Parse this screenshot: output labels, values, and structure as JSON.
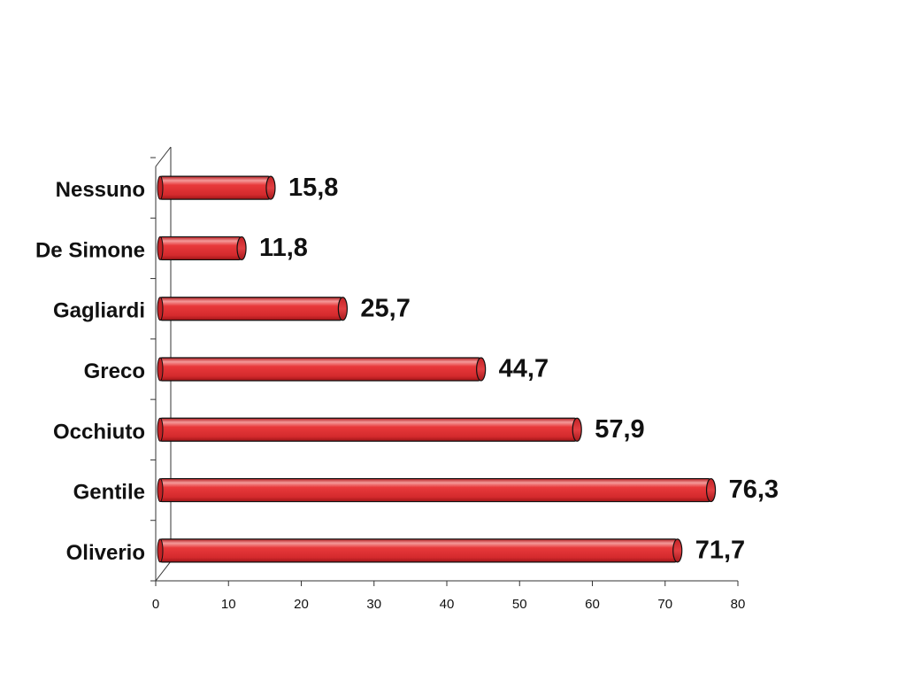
{
  "chart_data": {
    "type": "bar",
    "orientation": "horizontal",
    "style": "3d-cylinder",
    "title": "",
    "xlabel": "",
    "ylabel": "",
    "categories": [
      "Nessuno",
      "De Simone",
      "Gagliardi",
      "Greco",
      "Occhiuto",
      "Gentile",
      "Oliverio"
    ],
    "values": [
      15.8,
      11.8,
      25.7,
      44.7,
      57.9,
      76.3,
      71.7
    ],
    "value_labels": [
      "15,8",
      "11,8",
      "25,7",
      "44,7",
      "57,9",
      "76,3",
      "71,7"
    ],
    "xlim": [
      0,
      80
    ],
    "x_ticks": [
      0,
      10,
      20,
      30,
      40,
      50,
      60,
      70,
      80
    ],
    "x_tick_labels": [
      "0",
      "10",
      "20",
      "30",
      "40",
      "50",
      "60",
      "70",
      "80"
    ],
    "grid": false,
    "legend": "none",
    "colors": {
      "bar_fill": "#e8393b",
      "bar_highlight": "#f49a9a",
      "bar_shadow": "#9e1518",
      "bar_outline": "#111111",
      "axis": "#333333",
      "text": "#111111"
    }
  }
}
